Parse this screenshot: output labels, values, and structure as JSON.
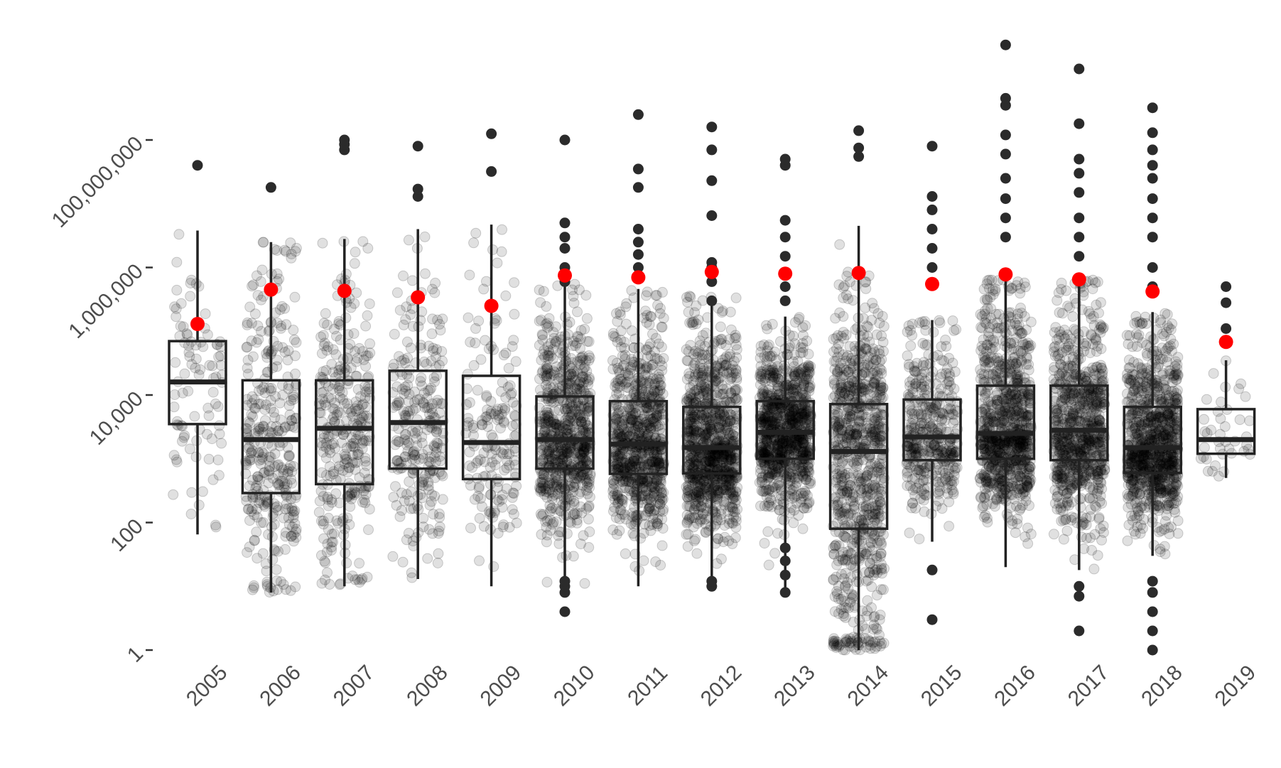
{
  "chart_data": {
    "type": "box",
    "title": "",
    "xlabel": "",
    "ylabel": "",
    "y_scale": "log10",
    "ylim": [
      0.6,
      2000000000
    ],
    "y_ticks": [
      {
        "value": 1,
        "label": "1"
      },
      {
        "value": 100,
        "label": "100"
      },
      {
        "value": 10000,
        "label": "10,000"
      },
      {
        "value": 1000000,
        "label": "1,000,000"
      },
      {
        "value": 100000000,
        "label": "100,000,000"
      }
    ],
    "grid": false,
    "legend": "none",
    "colors": {
      "box": "#222222",
      "jitter": "#000000",
      "outlier": "#2b2b2b",
      "mean": "#ff0000",
      "tick_text": "#4d4d4d"
    },
    "categories": [
      "2005",
      "2006",
      "2007",
      "2008",
      "2009",
      "2010",
      "2011",
      "2012",
      "2013",
      "2014",
      "2015",
      "2016",
      "2017",
      "2018",
      "2019"
    ],
    "series": [
      {
        "category": "2005",
        "q1": 3500,
        "median": 16000,
        "q3": 70000,
        "whisker_low": 65,
        "whisker_high": 3800000,
        "mean": 130000,
        "outliers": [
          40000000
        ],
        "n": 90
      },
      {
        "category": "2006",
        "q1": 290,
        "median": 2000,
        "q3": 17000,
        "whisker_low": 8,
        "whisker_high": 2500000,
        "mean": 450000,
        "outliers": [
          18000000
        ],
        "n": 330
      },
      {
        "category": "2007",
        "q1": 400,
        "median": 3000,
        "q3": 17000,
        "whisker_low": 10,
        "whisker_high": 2800000,
        "mean": 430000,
        "outliers": [
          70000000,
          85000000,
          100000000
        ],
        "n": 320
      },
      {
        "category": "2008",
        "q1": 700,
        "median": 3700,
        "q3": 24000,
        "whisker_low": 13,
        "whisker_high": 4000000,
        "mean": 340000,
        "outliers": [
          13000000,
          17000000,
          80000000
        ],
        "n": 260
      },
      {
        "category": "2009",
        "q1": 480,
        "median": 1800,
        "q3": 20000,
        "whisker_low": 10,
        "whisker_high": 4700000,
        "mean": 250000,
        "outliers": [
          32000000,
          125000000
        ],
        "n": 170
      },
      {
        "category": "2010",
        "q1": 700,
        "median": 2000,
        "q3": 9500,
        "whisker_low": 10,
        "whisker_high": 550000,
        "mean": 750000,
        "outliers": [
          4,
          8,
          10,
          12,
          600000,
          1000000,
          2000000,
          3000000,
          5000000,
          100000000
        ],
        "n": 700
      },
      {
        "category": "2011",
        "q1": 580,
        "median": 1700,
        "q3": 8000,
        "whisker_low": 10,
        "whisker_high": 460000,
        "mean": 700000,
        "outliers": [
          1000000,
          1600000,
          2500000,
          4000000,
          18000000,
          35000000,
          250000000
        ],
        "n": 760
      },
      {
        "category": "2012",
        "q1": 590,
        "median": 1500,
        "q3": 6500,
        "whisker_low": 10,
        "whisker_high": 360000,
        "mean": 850000,
        "outliers": [
          10,
          12,
          300000,
          600000,
          1000000,
          1200000,
          6500000,
          23000000,
          70000000,
          160000000
        ],
        "n": 900
      },
      {
        "category": "2013",
        "q1": 1000,
        "median": 2600,
        "q3": 8000,
        "whisker_low": 8,
        "whisker_high": 170000,
        "mean": 800000,
        "outliers": [
          8,
          15,
          25,
          40,
          300000,
          500000,
          800000,
          1500000,
          3000000,
          5500000,
          40000000,
          50000000
        ],
        "n": 880
      },
      {
        "category": "2014",
        "q1": 80,
        "median": 1300,
        "q3": 7200,
        "whisker_low": 1,
        "whisker_high": 4500000,
        "mean": 820000,
        "outliers": [
          55000000,
          75000000,
          140000000
        ],
        "n": 820
      },
      {
        "category": "2015",
        "q1": 950,
        "median": 2200,
        "q3": 8500,
        "whisker_low": 50,
        "whisker_high": 150000,
        "mean": 550000,
        "outliers": [
          3,
          18,
          1000000,
          2000000,
          4000000,
          8000000,
          13000000,
          80000000
        ],
        "n": 390
      },
      {
        "category": "2016",
        "q1": 1000,
        "median": 2500,
        "q3": 14000,
        "whisker_low": 20,
        "whisker_high": 650000,
        "mean": 780000,
        "outliers": [
          3000000,
          6000000,
          12000000,
          25000000,
          60000000,
          120000000,
          350000000,
          450000000,
          3100000000
        ],
        "n": 840
      },
      {
        "category": "2017",
        "q1": 950,
        "median": 2800,
        "q3": 14000,
        "whisker_low": 18,
        "whisker_high": 650000,
        "mean": 650000,
        "outliers": [
          2,
          7,
          10,
          1500000,
          3000000,
          6000000,
          15000000,
          30000000,
          50000000,
          180000000,
          1300000000
        ],
        "n": 760
      },
      {
        "category": "2018",
        "q1": 600,
        "median": 1500,
        "q3": 6500,
        "whisker_low": 30,
        "whisker_high": 200000,
        "mean": 420000,
        "outliers": [
          1,
          2,
          4,
          8,
          12,
          500000,
          1000000,
          3000000,
          6000000,
          12000000,
          25000000,
          40000000,
          70000000,
          130000000,
          320000000
        ],
        "n": 880
      },
      {
        "category": "2019",
        "q1": 1200,
        "median": 2000,
        "q3": 6000,
        "whisker_low": 500,
        "whisker_high": 35000,
        "mean": 68000,
        "outliers": [
          110000,
          280000,
          500000
        ],
        "n": 40
      }
    ]
  }
}
